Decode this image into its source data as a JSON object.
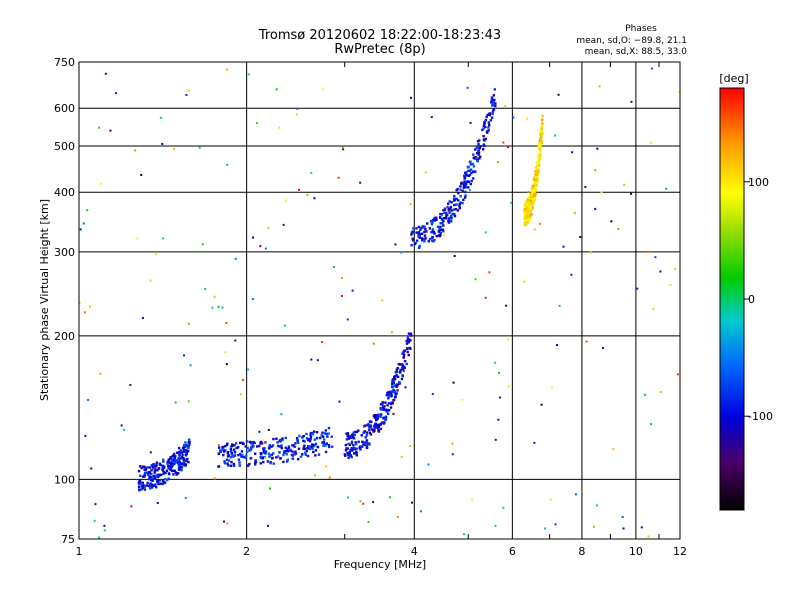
{
  "chart_data": {
    "type": "scatter",
    "title": "Tromsø 20120602 18:22:00-18:23:43",
    "subtitle": "RwPretec (8p)",
    "xlabel": "Frequency [MHz]",
    "ylabel": "Stationary phase Virtual Height [km]",
    "x_scale": "log",
    "y_scale": "log",
    "xlim": [
      1,
      12
    ],
    "ylim": [
      75,
      750
    ],
    "grid": true,
    "x_ticks": [
      1,
      2,
      4,
      6,
      8,
      10,
      12
    ],
    "y_ticks": [
      75,
      100,
      200,
      300,
      400,
      500,
      600,
      750
    ],
    "phases_legend": {
      "title": "Phases",
      "line1": "mean, sd,O: −89.8, 21.1",
      "line2": "mean, sd,X:  88.5, 33.0"
    },
    "colorbar": {
      "label": "[deg]",
      "min": -180,
      "max": 180,
      "ticks": [
        100,
        0,
        -100
      ],
      "colors": [
        "#000000",
        "#4a0066",
        "#0000dd",
        "#0066ff",
        "#00cccc",
        "#00cc00",
        "#99dd00",
        "#ffff00",
        "#ff9900",
        "#ff0000"
      ]
    },
    "trace_segments": [
      {
        "name": "segment-1",
        "x_range": [
          1.28,
          1.58
        ],
        "y_range": [
          101,
          116
        ],
        "phase_deg": -95
      },
      {
        "name": "segment-2",
        "x_range": [
          1.78,
          2.85
        ],
        "y_range": [
          113,
          122
        ],
        "phase_deg": -90
      },
      {
        "name": "segment-3",
        "x_range": [
          3.0,
          3.95
        ],
        "y_range": [
          118,
          200
        ],
        "phase_deg": -100
      },
      {
        "name": "segment-4",
        "x_range": [
          3.95,
          5.6
        ],
        "y_range": [
          320,
          640
        ],
        "phase_deg": -95
      },
      {
        "name": "segment-5",
        "x_range": [
          6.3,
          6.8
        ],
        "y_range": [
          360,
          560
        ],
        "phase_deg": 110
      }
    ]
  }
}
